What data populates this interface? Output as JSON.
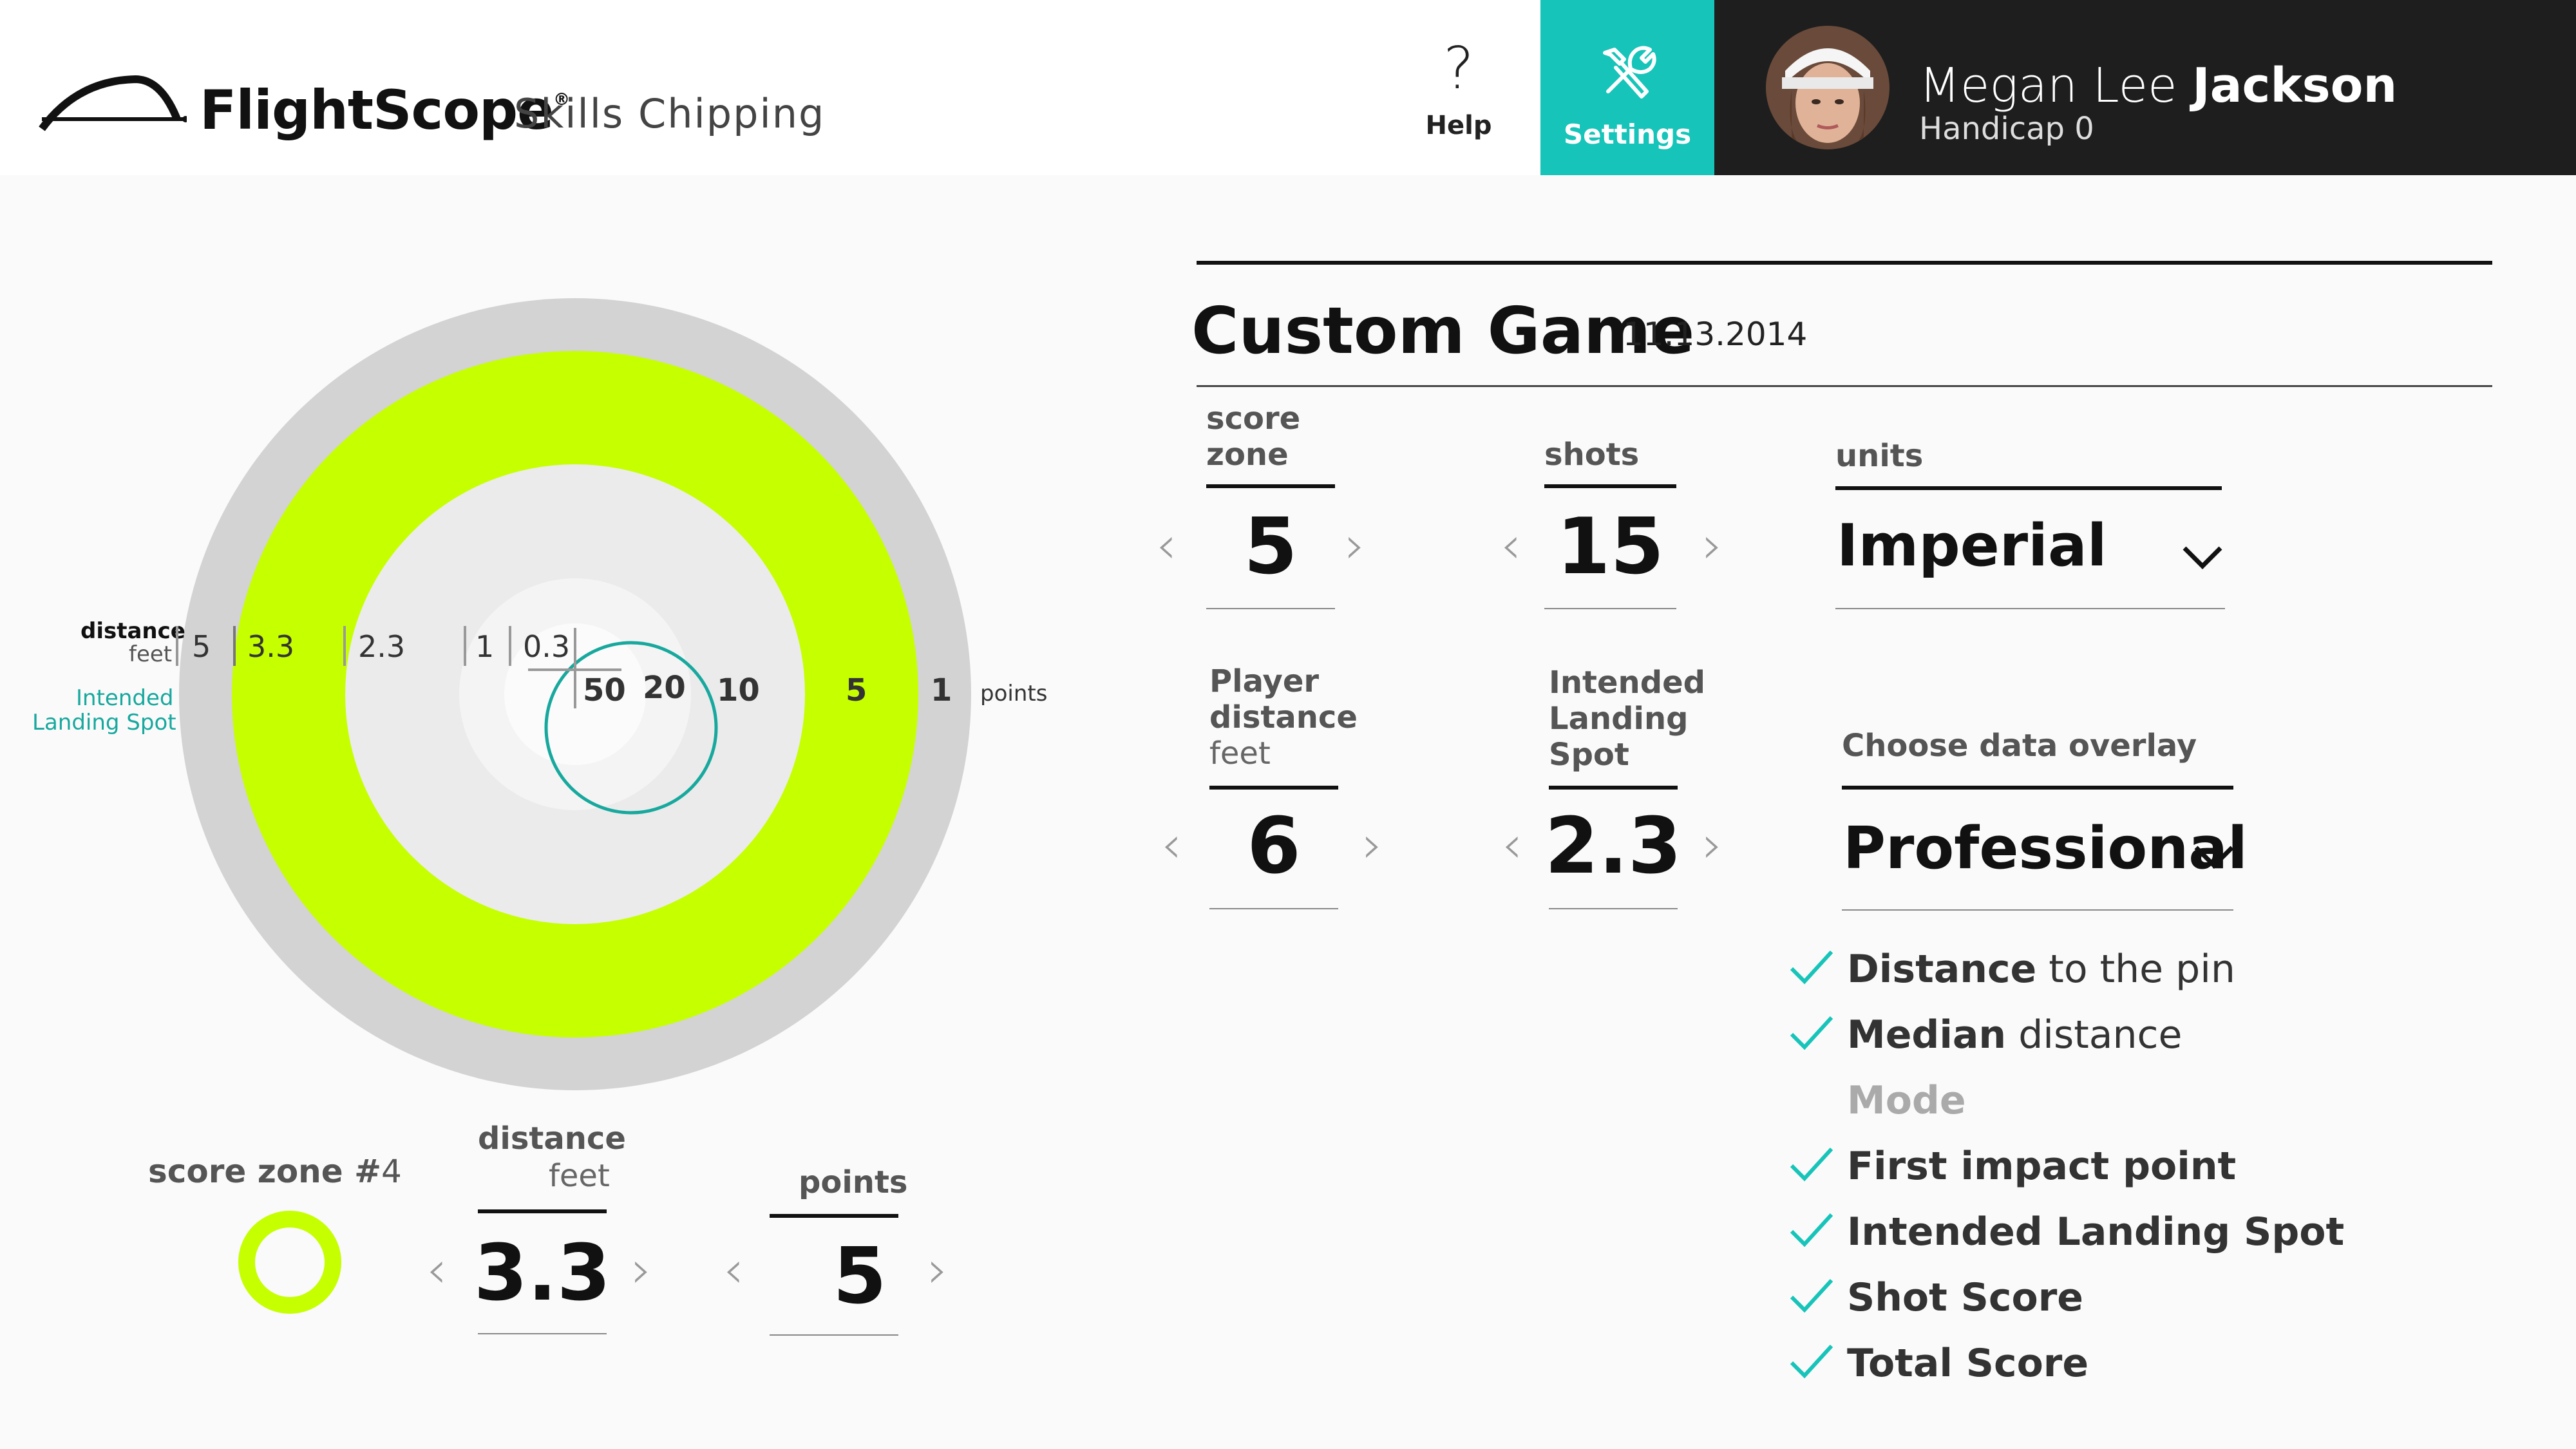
{
  "header": {
    "brand": "FlightScope",
    "brand_mark": "®",
    "app_title": "Skills Chipping",
    "help": {
      "icon": "question-mark-icon",
      "label": "Help"
    },
    "settings": {
      "icon": "tools-icon",
      "label": "Settings"
    }
  },
  "user": {
    "first_names": "Megan Lee",
    "last_name": "Jackson",
    "handicap": "Handicap 0"
  },
  "target": {
    "distance_label": "distance",
    "distance_unit": "feet",
    "landing_label_line1": "Intended",
    "landing_label_line2": "Landing Spot",
    "distances": [
      "5",
      "3.3",
      "2.3",
      "1",
      "0.3"
    ],
    "points": [
      "50",
      "20",
      "10",
      "5",
      "1"
    ],
    "points_label": "points",
    "colors": {
      "outer": "#d3d3d3",
      "zone4": "#c5ff00",
      "inner": "#ebebeb",
      "accent": "#17a89e"
    }
  },
  "game": {
    "title": "Custom Game",
    "date": "11.13.2014",
    "score_zone": {
      "label1": "score",
      "label2": "zone",
      "value": "5"
    },
    "shots": {
      "label": "shots",
      "value": "15"
    },
    "units": {
      "label": "units",
      "value": "Imperial"
    },
    "player_distance": {
      "label1": "Player",
      "label2": "distance",
      "unit": "feet",
      "value": "6"
    },
    "landing_spot": {
      "label1": "Intended",
      "label2": "Landing",
      "label3": "Spot",
      "value": "2.3"
    },
    "overlay": {
      "label": "Choose data overlay",
      "value": "Professional"
    }
  },
  "overlay_options": [
    {
      "bold": "Distance",
      "rest": " to the pin",
      "checked": true
    },
    {
      "bold": "Median",
      "rest": " distance",
      "checked": true
    },
    {
      "bold": "Mode",
      "rest": "",
      "checked": false
    },
    {
      "bold": "First impact point",
      "rest": "",
      "checked": true
    },
    {
      "bold": "Intended Landing Spot",
      "rest": "",
      "checked": true
    },
    {
      "bold": "Shot Score",
      "rest": "",
      "checked": true
    },
    {
      "bold": "Total Score",
      "rest": "",
      "checked": true
    }
  ],
  "zone_editor": {
    "label": "score zone #",
    "number": "4",
    "distance_label": "distance",
    "distance_unit": "feet",
    "distance_value": "3.3",
    "points_label": "points",
    "points_value": "5"
  }
}
